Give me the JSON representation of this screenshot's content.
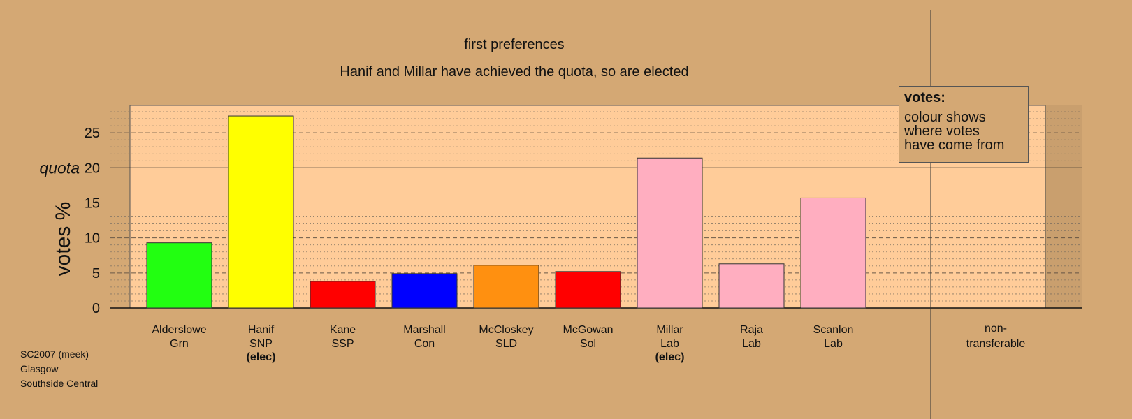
{
  "chart_data": {
    "type": "bar",
    "title": "first preferences",
    "subtitle": "Hanif and Millar have achieved the quota, so are elected",
    "ylabel": "votes %",
    "ylim": [
      0,
      28.9
    ],
    "yticks": [
      "0",
      "5",
      "10",
      "15",
      "20",
      "25"
    ],
    "quota": 20,
    "quota_label": "quota",
    "categories": [
      {
        "name": "Alderslowe",
        "party": "Grn",
        "status": "",
        "value": 9.3,
        "color": "#22ff11"
      },
      {
        "name": "Hanif",
        "party": "SNP",
        "status": "(elec)",
        "value": 27.4,
        "color": "#ffff00"
      },
      {
        "name": "Kane",
        "party": "SSP",
        "status": "",
        "value": 3.8,
        "color": "#ff0000"
      },
      {
        "name": "Marshall",
        "party": "Con",
        "status": "",
        "value": 4.9,
        "color": "#0000ff"
      },
      {
        "name": "McCloskey",
        "party": "SLD",
        "status": "",
        "value": 6.1,
        "color": "#ff9010"
      },
      {
        "name": "McGowan",
        "party": "Sol",
        "status": "",
        "value": 5.2,
        "color": "#ff0000"
      },
      {
        "name": "Millar",
        "party": "Lab",
        "status": "(elec)",
        "value": 21.4,
        "color": "#ffaec0"
      },
      {
        "name": "Raja",
        "party": "Lab",
        "status": "",
        "value": 6.3,
        "color": "#ffaec0"
      },
      {
        "name": "Scanlon",
        "party": "Lab",
        "status": "",
        "value": 15.7,
        "color": "#ffaec0"
      }
    ],
    "non_transferable": {
      "label_line1": "non-",
      "label_line2": "transferable",
      "value": 0
    },
    "legend": {
      "title": "votes:",
      "lines": [
        "colour shows",
        "where votes",
        "have come from"
      ],
      "position": "top-right"
    },
    "grid": true
  },
  "footer": {
    "line1": "SC2007 (meek)",
    "line2": "Glasgow",
    "line3": "Southside Central"
  },
  "colors": {
    "background": "#d4a874",
    "plot_background": "#ffcc99"
  }
}
